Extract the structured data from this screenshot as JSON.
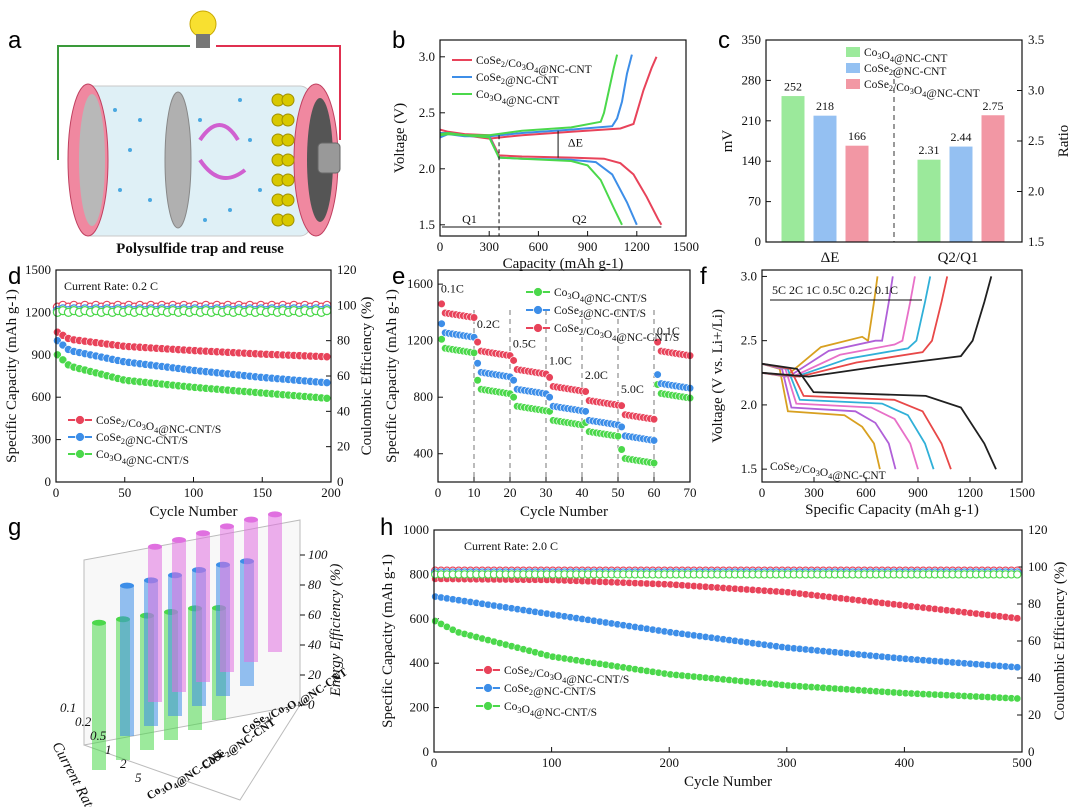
{
  "panels": {
    "a": {
      "letter": "a",
      "caption": "Polysulfide trap and reuse"
    },
    "b": {
      "letter": "b"
    },
    "c": {
      "letter": "c"
    },
    "d": {
      "letter": "d",
      "rate_text": "Current Rate: 0.2 C"
    },
    "e": {
      "letter": "e"
    },
    "f": {
      "letter": "f",
      "label": "CoSe2/Co3O4@NC-CNT",
      "rates_text": "5C  2C  1C  0.5C  0.2C  0.1C"
    },
    "g": {
      "letter": "g"
    },
    "h": {
      "letter": "h",
      "rate_text": "Current Rate: 2.0 C"
    }
  },
  "colors": {
    "red": "#e8435a",
    "blue": "#3d8ee8",
    "green": "#4bd84b"
  },
  "chart_data": [
    {
      "id": "b",
      "type": "line",
      "xlabel": "Capacity (mAh g-1)",
      "ylabel": "Voltage (V)",
      "xlim": [
        0,
        1500
      ],
      "ylim": [
        1.4,
        3.15
      ],
      "xticks": [
        0,
        300,
        600,
        900,
        1200,
        1500
      ],
      "yticks": [
        1.5,
        2.0,
        2.5,
        3.0
      ],
      "annotations": {
        "dE": "ΔE",
        "q1": "Q1",
        "q2": "Q2"
      },
      "series": [
        {
          "name": "CoSe2/Co3O4@NC-CNT",
          "color": "red",
          "discharge": [
            [
              0,
              2.35
            ],
            [
              50,
              2.33
            ],
            [
              150,
              2.31
            ],
            [
              300,
              2.3
            ],
            [
              360,
              2.12
            ],
            [
              500,
              2.11
            ],
            [
              800,
              2.1
            ],
            [
              1000,
              2.09
            ],
            [
              1100,
              2.05
            ],
            [
              1180,
              1.95
            ],
            [
              1260,
              1.75
            ],
            [
              1330,
              1.55
            ],
            [
              1350,
              1.5
            ]
          ],
          "charge": [
            [
              0,
              2.28
            ],
            [
              50,
              2.32
            ],
            [
              150,
              2.3
            ],
            [
              300,
              2.27
            ],
            [
              500,
              2.3
            ],
            [
              800,
              2.33
            ],
            [
              1100,
              2.36
            ],
            [
              1180,
              2.4
            ],
            [
              1200,
              2.5
            ],
            [
              1240,
              2.7
            ],
            [
              1290,
              2.9
            ],
            [
              1320,
              3.0
            ]
          ]
        },
        {
          "name": "CoSe2@NC-CNT",
          "color": "blue",
          "discharge": [
            [
              0,
              2.32
            ],
            [
              50,
              2.32
            ],
            [
              150,
              2.3
            ],
            [
              300,
              2.29
            ],
            [
              360,
              2.1
            ],
            [
              500,
              2.09
            ],
            [
              800,
              2.08
            ],
            [
              950,
              2.06
            ],
            [
              1050,
              1.95
            ],
            [
              1140,
              1.7
            ],
            [
              1200,
              1.5
            ]
          ],
          "charge": [
            [
              0,
              2.28
            ],
            [
              50,
              2.31
            ],
            [
              150,
              2.29
            ],
            [
              300,
              2.29
            ],
            [
              500,
              2.32
            ],
            [
              800,
              2.35
            ],
            [
              1050,
              2.38
            ],
            [
              1080,
              2.45
            ],
            [
              1110,
              2.6
            ],
            [
              1140,
              2.85
            ],
            [
              1170,
              3.02
            ]
          ]
        },
        {
          "name": "Co3O4@NC-CNT",
          "color": "green",
          "discharge": [
            [
              0,
              2.31
            ],
            [
              50,
              2.32
            ],
            [
              150,
              2.3
            ],
            [
              300,
              2.28
            ],
            [
              360,
              2.1
            ],
            [
              500,
              2.09
            ],
            [
              800,
              2.07
            ],
            [
              900,
              2.03
            ],
            [
              980,
              1.9
            ],
            [
              1060,
              1.65
            ],
            [
              1110,
              1.5
            ]
          ],
          "charge": [
            [
              0,
              2.3
            ],
            [
              50,
              2.31
            ],
            [
              150,
              2.3
            ],
            [
              300,
              2.3
            ],
            [
              500,
              2.34
            ],
            [
              800,
              2.37
            ],
            [
              980,
              2.42
            ],
            [
              1000,
              2.5
            ],
            [
              1030,
              2.7
            ],
            [
              1060,
              2.9
            ],
            [
              1080,
              3.02
            ]
          ]
        }
      ]
    },
    {
      "id": "c",
      "type": "bar",
      "categories": [
        "ΔE",
        "Q2/Q1"
      ],
      "ylabel_left": "mV",
      "ylabel_right": "Ratio",
      "ylim_left": [
        0,
        350
      ],
      "ylim_right": [
        1.5,
        3.5
      ],
      "yticks_left": [
        0,
        70,
        140,
        210,
        280,
        350
      ],
      "yticks_right": [
        1.5,
        2.0,
        2.5,
        3.0,
        3.5
      ],
      "series": [
        {
          "name": "Co3O4@NC-CNT",
          "color": "green",
          "dE": 252,
          "ratio": 2.31
        },
        {
          "name": "CoSe2@NC-CNT",
          "color": "blue",
          "dE": 218,
          "ratio": 2.44
        },
        {
          "name": "CoSe2/Co3O4@NC-CNT",
          "color": "red",
          "dE": 166,
          "ratio": 2.75
        }
      ]
    },
    {
      "id": "d",
      "type": "scatter",
      "xlabel": "Cycle Number",
      "ylabel_left": "Specific Capacity (mAh g-1)",
      "ylabel_right": "Coulombic Efficiency (%)",
      "xlim": [
        0,
        200
      ],
      "ylim_left": [
        0,
        1500
      ],
      "ylim_right": [
        0,
        120
      ],
      "xticks": [
        0,
        50,
        100,
        150,
        200
      ],
      "yticks_left": [
        0,
        300,
        600,
        900,
        1200,
        1500
      ],
      "yticks_right": [
        0,
        20,
        40,
        60,
        80,
        100,
        120
      ],
      "series": [
        {
          "name": "CoSe2/Co3O4@NC-CNT/S",
          "color": "red",
          "capacity": [
            [
              1,
              1060
            ],
            [
              10,
              1010
            ],
            [
              50,
              960
            ],
            [
              100,
              930
            ],
            [
              150,
              905
            ],
            [
              200,
              885
            ]
          ],
          "ce": 100
        },
        {
          "name": "CoSe2@NC-CNT/S",
          "color": "blue",
          "capacity": [
            [
              1,
              1000
            ],
            [
              10,
              930
            ],
            [
              50,
              850
            ],
            [
              100,
              790
            ],
            [
              150,
              740
            ],
            [
              200,
              700
            ]
          ],
          "ce": 98
        },
        {
          "name": "Co3O4@NC-CNT/S",
          "color": "green",
          "capacity": [
            [
              1,
              900
            ],
            [
              10,
              820
            ],
            [
              50,
              720
            ],
            [
              100,
              670
            ],
            [
              150,
              630
            ],
            [
              200,
              590
            ]
          ],
          "ce": 97
        }
      ]
    },
    {
      "id": "e",
      "type": "scatter",
      "xlabel": "Cycle Number",
      "ylabel": "Specific Capacity (mAh g-1)",
      "xlim": [
        0,
        70
      ],
      "ylim": [
        200,
        1700
      ],
      "xticks": [
        0,
        10,
        20,
        30,
        40,
        50,
        60,
        70
      ],
      "yticks": [
        400,
        800,
        1200,
        1600
      ],
      "rate_labels": [
        "0.1C",
        "0.2C",
        "0.5C",
        "1.0C",
        "2.0C",
        "5.0C",
        "0.1C"
      ],
      "series": [
        {
          "name": "Co3O4@NC-CNT/S",
          "color": "green",
          "steps": [
            1150,
            860,
            740,
            640,
            560,
            370,
            830
          ]
        },
        {
          "name": "CoSe2@NC-CNT/S",
          "color": "blue",
          "steps": [
            1260,
            980,
            860,
            740,
            640,
            530,
            900
          ]
        },
        {
          "name": "CoSe2/Co3O4@NC-CNT/S",
          "color": "red",
          "steps": [
            1400,
            1130,
            1000,
            880,
            780,
            680,
            1130
          ]
        }
      ]
    },
    {
      "id": "f",
      "type": "line",
      "xlabel": "Specific Capacity (mAh g-1)",
      "ylabel": "Voltage (V vs. Li+/Li)",
      "xlim": [
        0,
        1500
      ],
      "ylim": [
        1.4,
        3.05
      ],
      "xticks": [
        0,
        300,
        600,
        900,
        1200,
        1500
      ],
      "yticks": [
        1.5,
        2.0,
        2.5,
        3.0
      ],
      "curves": [
        {
          "rate": "5C",
          "color": "#d8a020",
          "cap": 680
        },
        {
          "rate": "2C",
          "color": "#b060d8",
          "cap": 770
        },
        {
          "rate": "1C",
          "color": "#e870c8",
          "cap": 900
        },
        {
          "rate": "0.5C",
          "color": "#30b0d8",
          "cap": 990
        },
        {
          "rate": "0.2C",
          "color": "#e84848",
          "cap": 1090
        },
        {
          "rate": "0.1C",
          "color": "#202020",
          "cap": 1350
        }
      ]
    },
    {
      "id": "g",
      "type": "bar3d",
      "xlabel": "Current Rate (C)",
      "zlabel": "Energy Efficiency (%)",
      "rates": [
        "0.1",
        "0.2",
        "0.5",
        "1",
        "2",
        "5"
      ],
      "zticks": [
        0,
        20,
        40,
        60,
        80,
        100
      ],
      "series": [
        {
          "name": "Co3O4@NC-CNT",
          "color": "green",
          "values": [
            92,
            88,
            84,
            80,
            76,
            70
          ]
        },
        {
          "name": "CoSe2@NC-CNT",
          "color": "blue",
          "values": [
            94,
            91,
            88,
            85,
            82,
            78
          ]
        },
        {
          "name": "CoSe2/Co3O4@NC-CNT",
          "color": "#e070e0",
          "values": [
            97,
            95,
            93,
            91,
            89,
            86
          ]
        }
      ]
    },
    {
      "id": "h",
      "type": "scatter",
      "xlabel": "Cycle Number",
      "ylabel_left": "Specific Capacity (mAh g-1)",
      "ylabel_right": "Coulombic Efficiency (%)",
      "xlim": [
        0,
        500
      ],
      "ylim_left": [
        0,
        1000
      ],
      "ylim_right": [
        0,
        120
      ],
      "xticks": [
        0,
        100,
        200,
        300,
        400,
        500
      ],
      "yticks_left": [
        0,
        200,
        400,
        600,
        800,
        1000
      ],
      "yticks_right": [
        0,
        20,
        40,
        60,
        80,
        100,
        120
      ],
      "series": [
        {
          "name": "CoSe2/Co3O4@NC-CNT/S",
          "color": "red",
          "capacity": [
            [
              1,
              780
            ],
            [
              100,
              775
            ],
            [
              200,
              755
            ],
            [
              300,
              720
            ],
            [
              400,
              660
            ],
            [
              500,
              600
            ]
          ],
          "ce": 98
        },
        {
          "name": "CoSe2@NC-CNT/S",
          "color": "blue",
          "capacity": [
            [
              1,
              700
            ],
            [
              100,
              620
            ],
            [
              200,
              540
            ],
            [
              300,
              470
            ],
            [
              400,
              420
            ],
            [
              500,
              380
            ]
          ],
          "ce": 97
        },
        {
          "name": "Co3O4@NC-CNT/S",
          "color": "green",
          "capacity": [
            [
              1,
              590
            ],
            [
              20,
              540
            ],
            [
              100,
              430
            ],
            [
              200,
              350
            ],
            [
              300,
              300
            ],
            [
              400,
              265
            ],
            [
              500,
              240
            ]
          ],
          "ce": 96
        }
      ]
    }
  ]
}
